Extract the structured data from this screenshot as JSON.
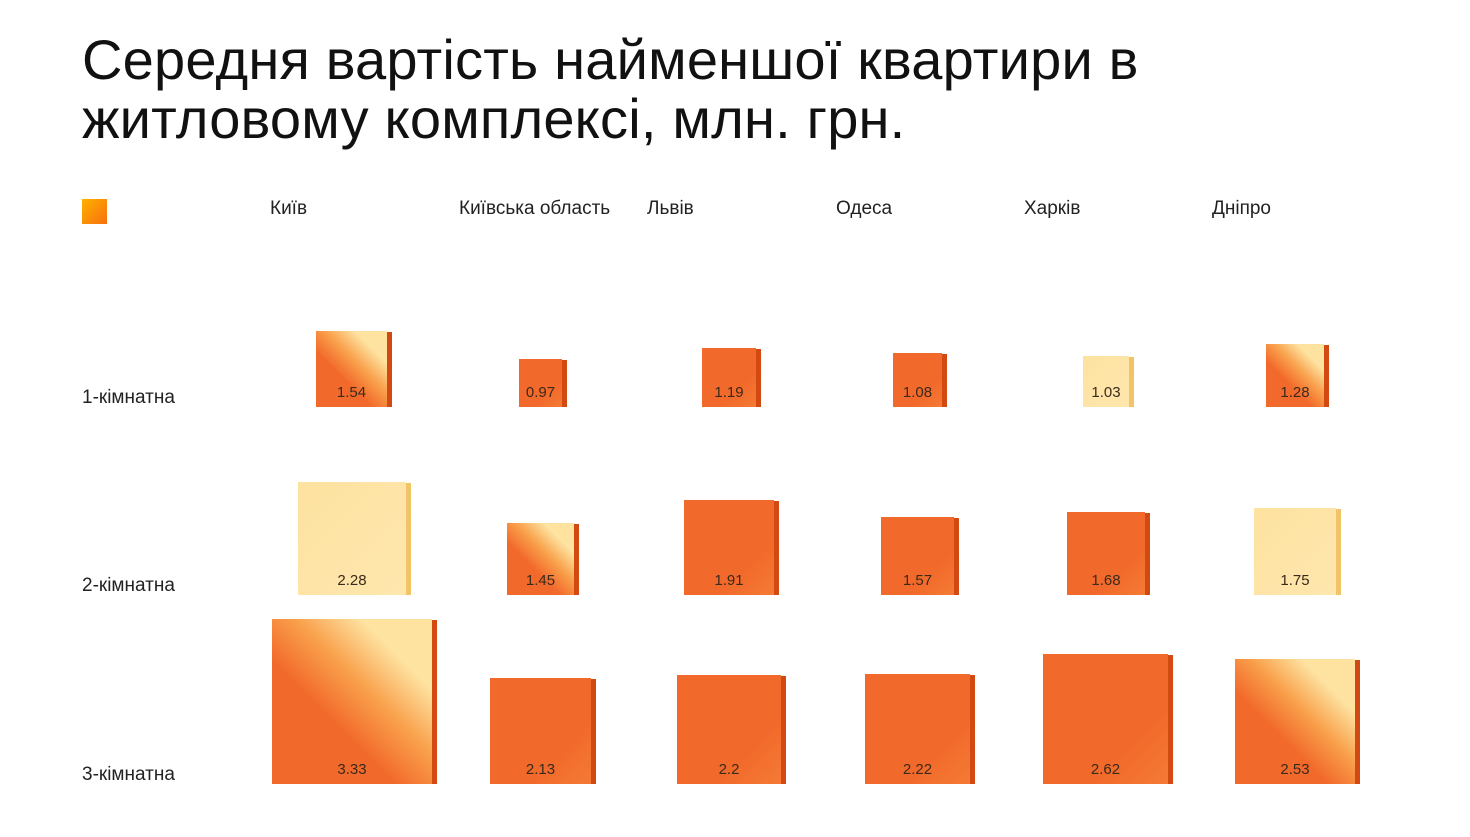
{
  "title": "Середня вартість найменшої квартири в житловому комплексі, млн. грн.",
  "colors": {
    "orange": "#f26a2b",
    "orange_dark": "#d24a12",
    "cream": "#fde2a0",
    "cream_dark": "#f2c468",
    "legend_start": "#ffb000",
    "legend_end": "#f7700f"
  },
  "chart_data": {
    "type": "table",
    "title": "Середня вартість найменшої квартири в житловому комплексі, млн. грн.",
    "categories": [
      "Київ",
      "Київська область",
      "Львів",
      "Одеса",
      "Харків",
      "Дніпро"
    ],
    "rows": [
      "1-кімнатна",
      "2-кімнатна",
      "3-кімнатна"
    ],
    "series": [
      {
        "name": "1-кімнатна",
        "values": [
          1.54,
          0.97,
          1.19,
          1.08,
          1.03,
          1.28
        ]
      },
      {
        "name": "2-кімнатна",
        "values": [
          2.28,
          1.45,
          1.91,
          1.57,
          1.68,
          1.75
        ]
      },
      {
        "name": "3-кімнатна",
        "values": [
          3.33,
          2.13,
          2.2,
          2.22,
          2.62,
          2.53
        ]
      }
    ],
    "cell_colors": [
      [
        "mixed",
        "orange",
        "orange",
        "orange",
        "cream",
        "mixed"
      ],
      [
        "cream",
        "mixed",
        "orange",
        "orange",
        "orange",
        "cream"
      ],
      [
        "mixed",
        "orange",
        "orange",
        "orange",
        "orange",
        "mixed"
      ]
    ],
    "encoding": "square size proportional to value",
    "legend_position": "top-left"
  }
}
